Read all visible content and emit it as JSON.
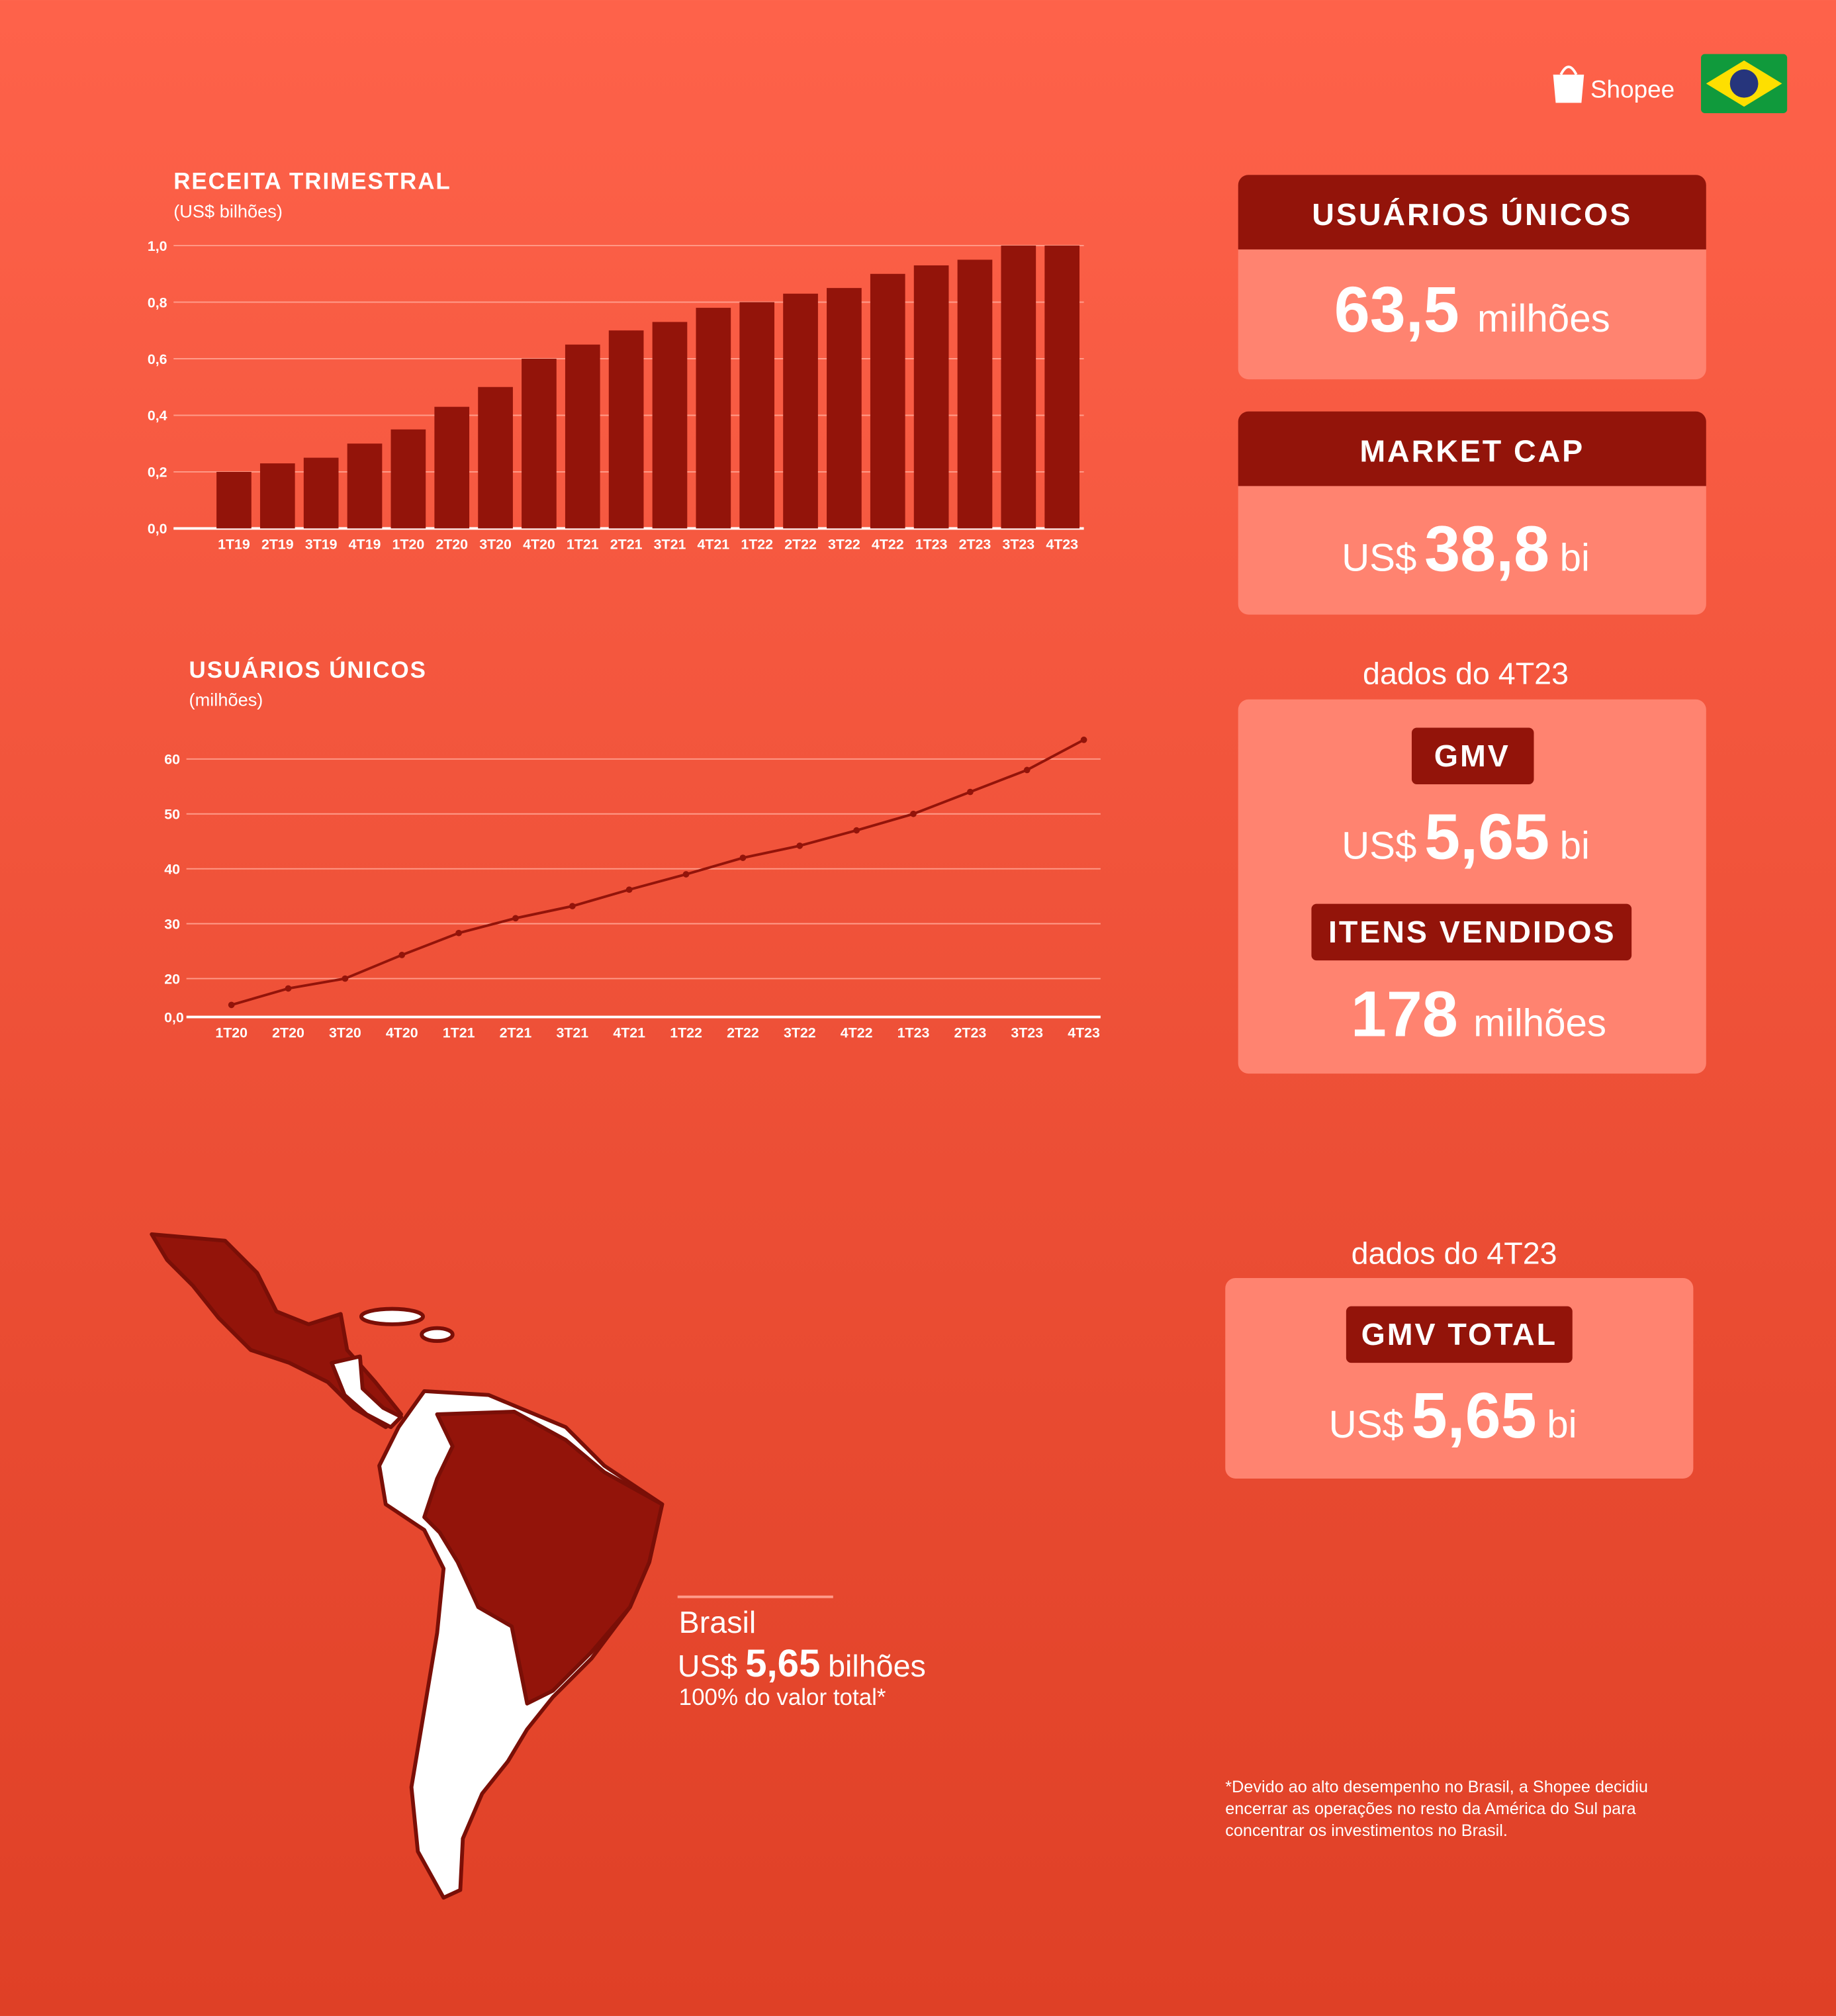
{
  "logo": {
    "brand": "Shopee"
  },
  "chart_data": [
    {
      "type": "bar",
      "title": "RECEITA TRIMESTRAL",
      "subtitle": "(US$ bilhões)",
      "color": "#93140a",
      "categories": [
        "1T19",
        "2T19",
        "3T19",
        "4T19",
        "1T20",
        "2T20",
        "3T20",
        "4T20",
        "1T21",
        "2T21",
        "3T21",
        "4T21",
        "1T22",
        "2T22",
        "3T22",
        "4T22",
        "1T23",
        "2T23",
        "3T23",
        "4T23"
      ],
      "values": [
        0.2,
        0.23,
        0.25,
        0.3,
        0.35,
        0.43,
        0.5,
        0.6,
        0.65,
        0.7,
        0.73,
        0.78,
        0.8,
        0.83,
        0.85,
        0.9,
        0.93,
        0.95,
        1.0,
        1.0
      ],
      "ylim": [
        0,
        1
      ],
      "yticks": [
        {
          "value": 0,
          "label": "0,0"
        },
        {
          "value": 0.2,
          "label": "0,2"
        },
        {
          "value": 0.4,
          "label": "0,4"
        },
        {
          "value": 0.6,
          "label": "0,6"
        },
        {
          "value": 0.8,
          "label": "0,8"
        },
        {
          "value": 1,
          "label": "1,0"
        }
      ],
      "grid": true
    },
    {
      "type": "line",
      "title": "USUÁRIOS ÚNICOS",
      "subtitle": "(milhões)",
      "color": "#93140a",
      "baseline_label": "0,0",
      "categories": [
        "1T20",
        "2T20",
        "3T20",
        "4T20",
        "1T21",
        "2T21",
        "3T21",
        "4T21",
        "1T22",
        "2T22",
        "3T22",
        "4T22",
        "1T23",
        "2T23",
        "3T23",
        "4T23"
      ],
      "values": [
        15.2,
        18.2,
        20,
        24.3,
        28.3,
        31,
        33.2,
        36.2,
        39,
        42,
        44.2,
        47,
        50,
        54,
        58,
        63.5
      ],
      "ylim": [
        13,
        65
      ],
      "yticks": [
        20,
        30,
        40,
        50,
        60
      ],
      "grid": true
    }
  ],
  "cards": [
    {
      "title": "USUÁRIOS ÚNICOS",
      "value": "63,5",
      "unit": "milhões"
    },
    {
      "title": "MARKET CAP",
      "prefix": "US$",
      "value": "38,8",
      "unit": "bi"
    }
  ],
  "quarter_card": {
    "caption": "dados do 4T23",
    "items": [
      {
        "title": "GMV",
        "prefix": "US$",
        "value": "5,65",
        "unit": "bi"
      },
      {
        "title": "ITENS VENDIDOS",
        "value": "178",
        "unit": "milhões"
      }
    ]
  },
  "total_card": {
    "caption": "dados do 4T23",
    "title": "GMV TOTAL",
    "prefix": "US$",
    "value": "5,65",
    "unit": "bi"
  },
  "map": {
    "label": "Brasil",
    "prefix": "US$",
    "value": "5,65",
    "unit": "bilhões",
    "share": "100% do valor total*"
  },
  "footnote": [
    "*Devido ao alto desempenho no Brasil, a Shopee decidiu",
    "encerrar as operações no resto da América do Sul para",
    "concentrar os investimentos no Brasil."
  ]
}
